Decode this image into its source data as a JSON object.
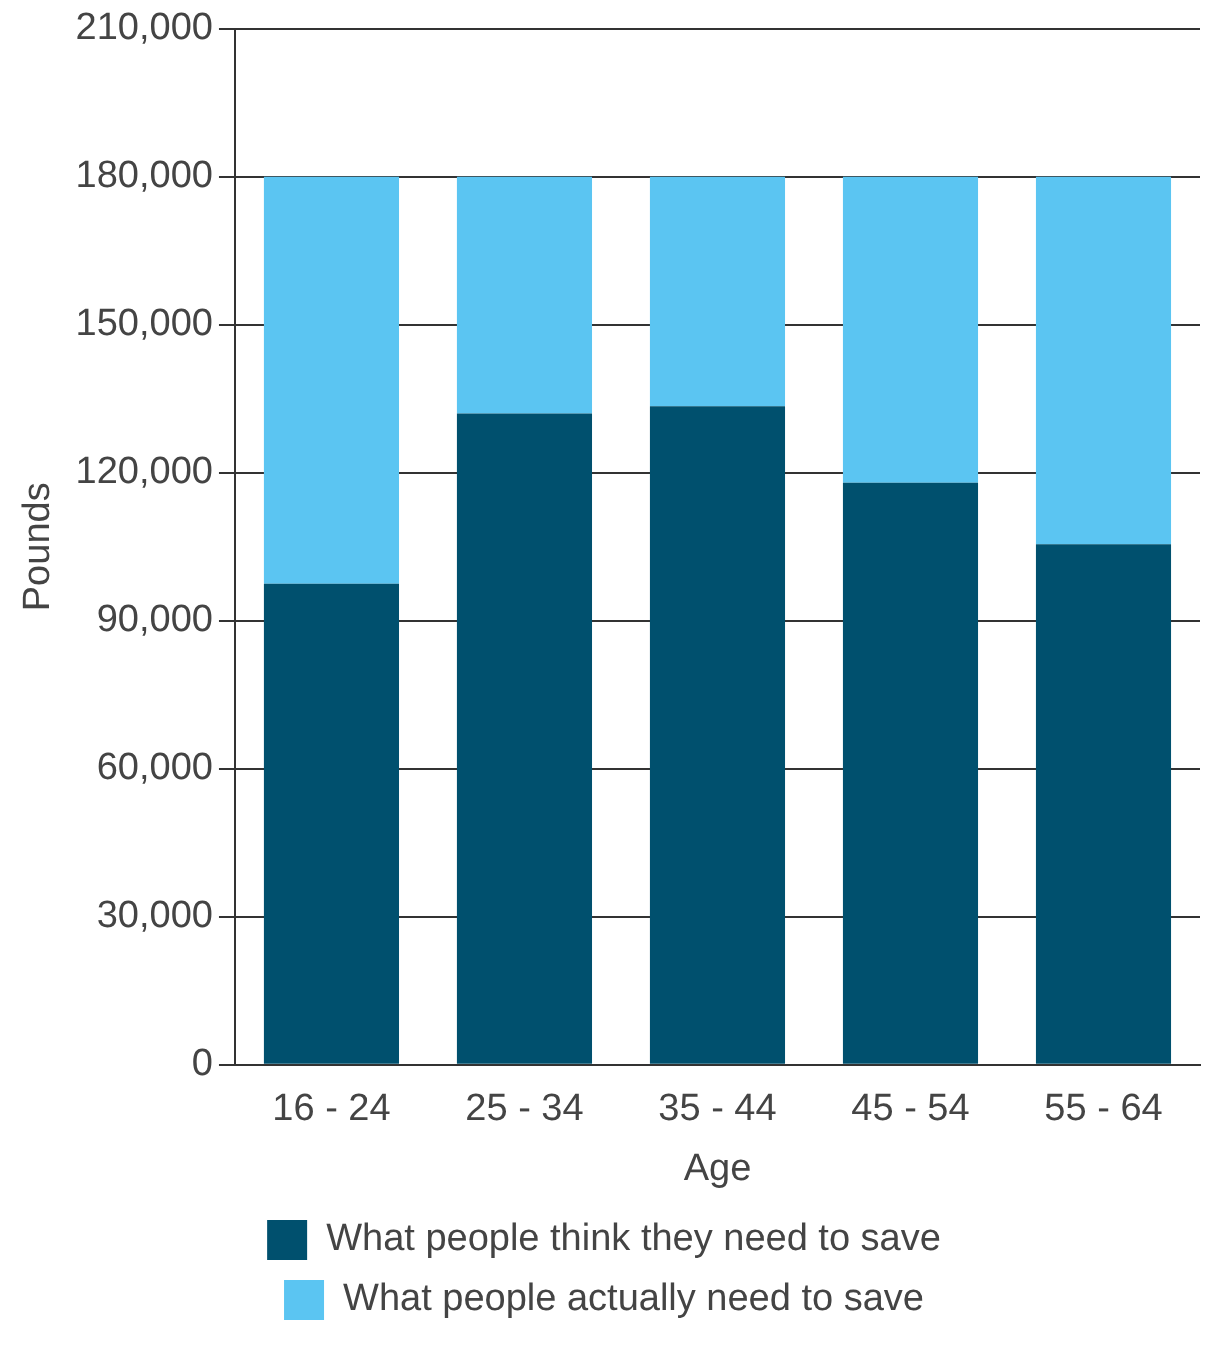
{
  "chart_data": {
    "type": "bar",
    "stacked": true,
    "xlabel": "Age",
    "ylabel": "Pounds",
    "categories": [
      "16 - 24",
      "25 - 34",
      "35 - 44",
      "45 - 54",
      "55 - 64"
    ],
    "series": [
      {
        "name": "What people think they need to save",
        "color": "#00506e",
        "values": [
          97500,
          132000,
          133500,
          118000,
          105500
        ]
      },
      {
        "name": "What people actually need to save",
        "color": "#5bc5f2",
        "values": [
          82500,
          48000,
          46500,
          62000,
          74500
        ]
      }
    ],
    "ylim": [
      0,
      210000
    ],
    "yticks": [
      0,
      {
        "value": 30000,
        "label": "30,000"
      },
      {
        "value": 60000,
        "label": "60,000"
      },
      {
        "value": 90000,
        "label": "90,000"
      },
      {
        "value": 120000,
        "label": "120,000"
      },
      {
        "value": 150000,
        "label": "150,000"
      },
      {
        "value": 180000,
        "label": "180,000"
      },
      {
        "value": 210000,
        "label": "210,000"
      }
    ],
    "grid": "y",
    "legend": "bottom"
  }
}
